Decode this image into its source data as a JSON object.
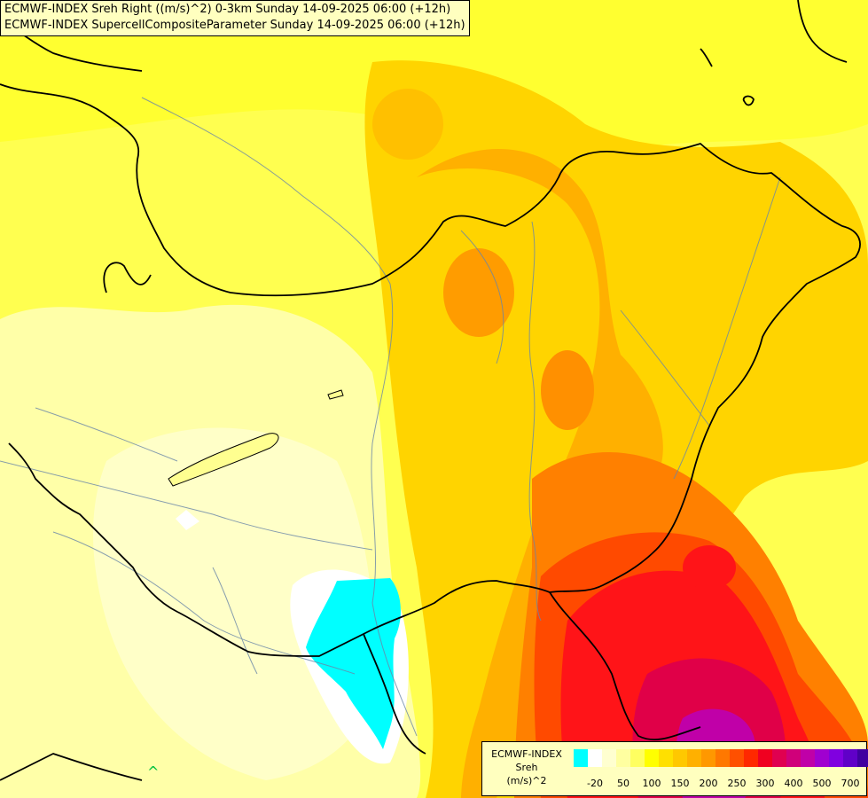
{
  "titles": [
    "ECMWF-INDEX Sreh Right ((m/s)^2) 0-3km Sunday 14-09-2025 06:00 (+12h)",
    "ECMWF-INDEX SupercellCompositeParameter Sunday 14-09-2025 06:00 (+12h)"
  ],
  "legend": {
    "line1": "ECMWF-INDEX",
    "line2": "Sreh",
    "line3": "(m/s)^2",
    "colors": [
      "#00ffff",
      "#ffffff",
      "#ffffd0",
      "#ffffa0",
      "#ffff60",
      "#ffff00",
      "#ffe000",
      "#ffc800",
      "#ffb000",
      "#ff9800",
      "#ff7800",
      "#ff5000",
      "#ff2800",
      "#f00020",
      "#e00050",
      "#d0007a",
      "#c000a8",
      "#a000d0",
      "#8000e0",
      "#6000c8",
      "#4000a0"
    ],
    "tick_labels": [
      {
        "label": "-20",
        "idx": 1
      },
      {
        "label": "50",
        "idx": 3
      },
      {
        "label": "100",
        "idx": 5
      },
      {
        "label": "150",
        "idx": 7
      },
      {
        "label": "200",
        "idx": 9
      },
      {
        "label": "250",
        "idx": 11
      },
      {
        "label": "300",
        "idx": 13
      },
      {
        "label": "400",
        "idx": 15
      },
      {
        "label": "500",
        "idx": 17
      },
      {
        "label": "700",
        "idx": 19
      }
    ]
  },
  "palette": {
    "pale": "#ffffc8",
    "light": "#ffff90",
    "yellow": "#ffff00",
    "gold": "#ffd800",
    "orange": "#ffb000",
    "dark_orange": "#ff8000",
    "red_orange": "#ff5000",
    "red": "#ff1010",
    "crimson": "#e00040",
    "magenta": "#c000a0",
    "cyan": "#00ffff"
  },
  "map_marker": "^"
}
